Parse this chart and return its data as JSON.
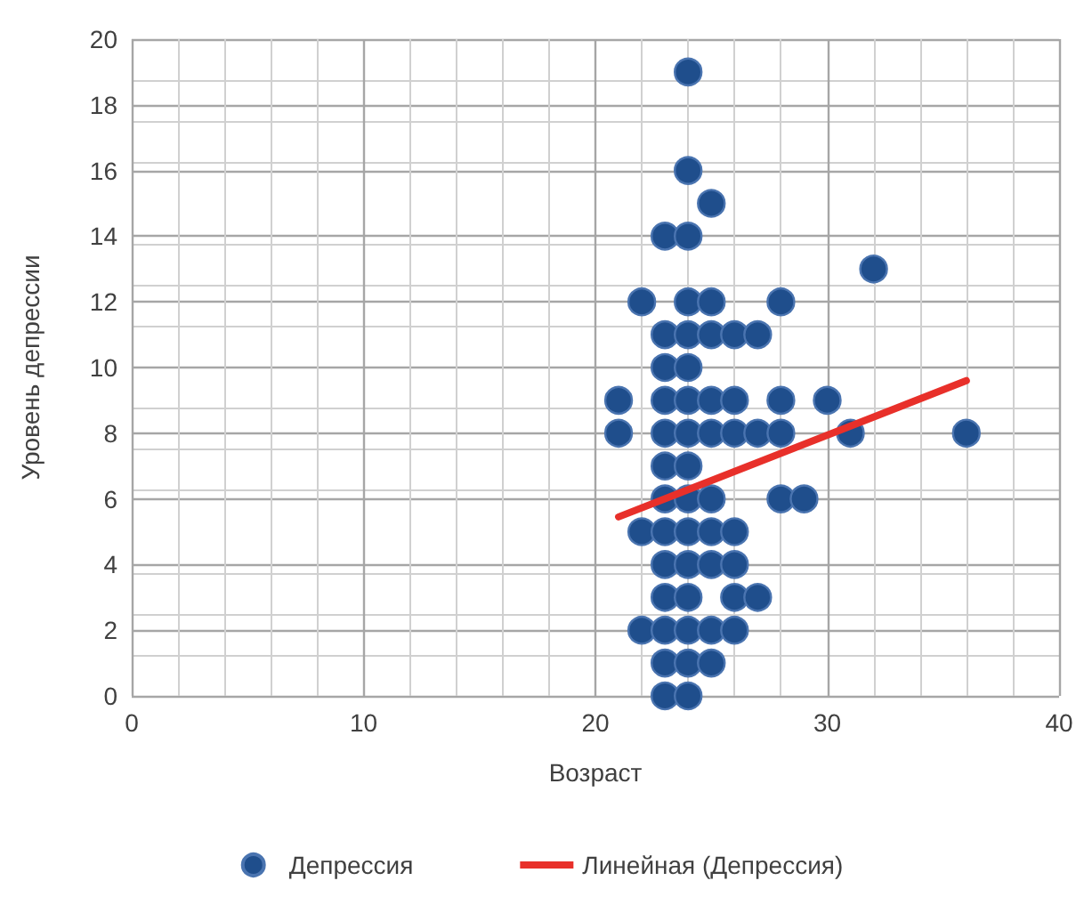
{
  "chart_data": {
    "type": "scatter",
    "xlabel": "Возраст",
    "ylabel": "Уровень депрессии",
    "xlim": [
      0,
      40
    ],
    "xticks": [
      0,
      10,
      20,
      30,
      40
    ],
    "ylim": [
      0,
      20
    ],
    "yticks": [
      0,
      2,
      4,
      6,
      8,
      10,
      12,
      14,
      16,
      18,
      20
    ],
    "grid": true,
    "legend": "bottom",
    "marker": "circle",
    "series": [
      {
        "name": "Депрессия",
        "color": "#1f4e8c",
        "x": [
          24,
          24,
          25,
          23,
          24,
          32,
          22,
          24,
          25,
          28,
          23,
          24,
          25,
          26,
          27,
          23,
          24,
          21,
          23,
          24,
          25,
          26,
          28,
          30,
          21,
          23,
          24,
          25,
          26,
          27,
          28,
          31,
          36,
          23,
          24,
          23,
          24,
          25,
          28,
          29,
          22,
          23,
          24,
          25,
          26,
          23,
          24,
          25,
          26,
          23,
          24,
          26,
          27,
          22,
          23,
          24,
          25,
          26,
          23,
          24,
          25,
          23,
          24
        ],
        "values": [
          19,
          16,
          15,
          14,
          14,
          13,
          12,
          12,
          12,
          12,
          11,
          11,
          11,
          11,
          11,
          10,
          10,
          9,
          9,
          9,
          9,
          9,
          9,
          9,
          8,
          8,
          8,
          8,
          8,
          8,
          8,
          8,
          8,
          7,
          7,
          6,
          6,
          6,
          6,
          6,
          5,
          5,
          5,
          5,
          5,
          4,
          4,
          4,
          4,
          3,
          3,
          3,
          3,
          2,
          2,
          2,
          2,
          2,
          1,
          1,
          1,
          0,
          0
        ]
      },
      {
        "name": "Линейная (Депрессия)",
        "type": "line",
        "color": "#e8302a",
        "x": [
          21,
          36
        ],
        "values": [
          5.45,
          9.6
        ],
        "marker": "none",
        "line_style": "solid"
      }
    ]
  }
}
